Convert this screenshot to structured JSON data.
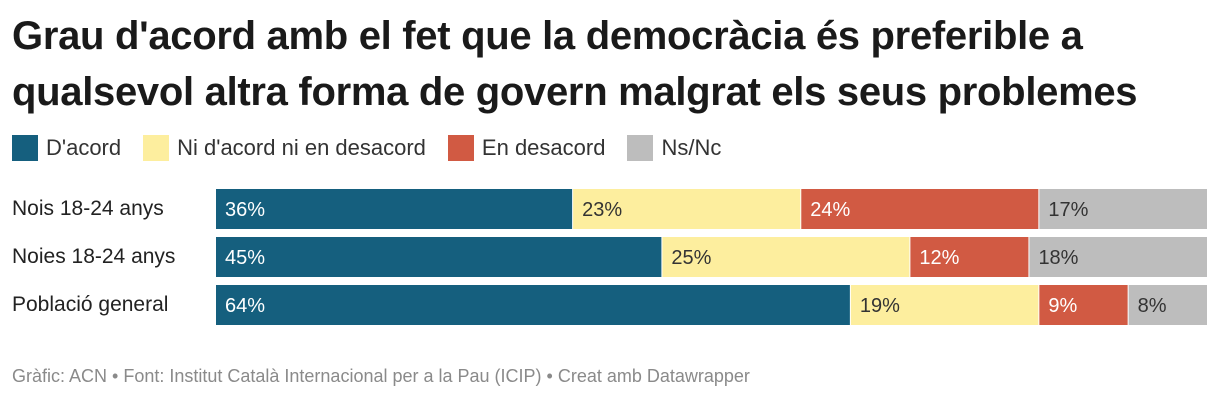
{
  "title": "Grau d'acord amb el fet que la democràcia és preferible a qualsevol altra forma de govern malgrat els seus problemes",
  "footer": "Gràfic: ACN • Font: Institut Català Internacional per a la Pau (ICIP) • Creat amb Datawrapper",
  "colors": {
    "acord": "#155f7e",
    "neutral": "#fdee9e",
    "desacord": "#d15a43",
    "nsnc": "#bdbdbd"
  },
  "chart_data": {
    "type": "bar",
    "orientation": "horizontal",
    "stacked": true,
    "percent": true,
    "categories": [
      "Nois 18-24 anys",
      "Noies 18-24 anys",
      "Població general"
    ],
    "series": [
      {
        "name": "D'acord",
        "color": "#155f7e",
        "values": [
          36,
          45,
          64
        ],
        "labels": [
          "36%",
          "45%",
          "64%"
        ]
      },
      {
        "name": "Ni d'acord ni en desacord",
        "color": "#fdee9e",
        "values": [
          23,
          25,
          19
        ],
        "labels": [
          "23%",
          "25%",
          "19%"
        ]
      },
      {
        "name": "En desacord",
        "color": "#d15a43",
        "values": [
          24,
          12,
          9
        ],
        "labels": [
          "24%",
          "12%",
          "9%"
        ]
      },
      {
        "name": "Ns/Nc",
        "color": "#bdbdbd",
        "values": [
          17,
          18,
          8
        ],
        "labels": [
          "17%",
          "18%",
          "8%"
        ]
      }
    ],
    "legend_position": "top-left",
    "grid": false
  }
}
